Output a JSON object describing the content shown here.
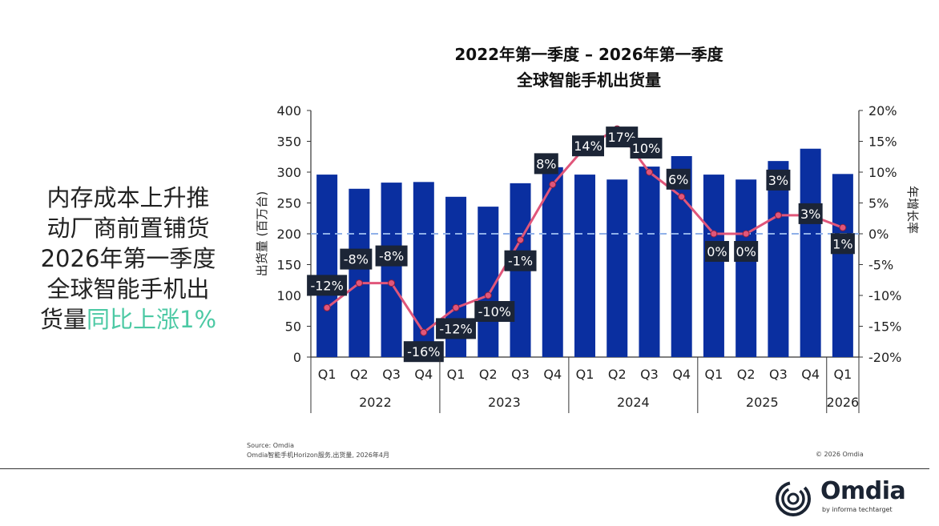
{
  "headline": {
    "lines": [
      "内存成本上升推",
      "动厂商前置铺货",
      "2026年第一季度",
      "全球智能手机出"
    ],
    "last_line_plain": "货量",
    "last_line_highlight": "同比上涨1%",
    "highlight_color": "#4cc9a4"
  },
  "chart_data": {
    "type": "bar+line",
    "title": [
      "2022年第一季度 – 2026年第一季度",
      "全球智能手机出货量"
    ],
    "ylabel": "出货量 (百万台)",
    "y2label": "年增长率",
    "ylim": [
      0,
      400
    ],
    "yticks": [
      "0",
      "50",
      "100",
      "150",
      "200",
      "250",
      "300",
      "350",
      "400"
    ],
    "y2lim": [
      -20,
      20
    ],
    "y2ticks": [
      "-20%",
      "-15%",
      "-10%",
      "-5%",
      "0%",
      "5%",
      "10%",
      "15%",
      "20%"
    ],
    "categories": [
      "Q1",
      "Q2",
      "Q3",
      "Q4",
      "Q1",
      "Q2",
      "Q3",
      "Q4",
      "Q1",
      "Q2",
      "Q3",
      "Q4",
      "Q1",
      "Q2",
      "Q3",
      "Q4",
      "Q1"
    ],
    "groups": [
      {
        "label": "2022",
        "count": 4
      },
      {
        "label": "2023",
        "count": 4
      },
      {
        "label": "2024",
        "count": 4
      },
      {
        "label": "2025",
        "count": 4
      },
      {
        "label": "2026",
        "count": 1
      }
    ],
    "series": [
      {
        "type": "bar",
        "axis": "left",
        "color": "#0a2fa0",
        "values": [
          296,
          273,
          283,
          284,
          260,
          244,
          282,
          308,
          296,
          288,
          309,
          326,
          296,
          288,
          318,
          338,
          297
        ]
      },
      {
        "type": "line",
        "axis": "right",
        "color": "#e0567a",
        "values": [
          -12,
          -8,
          -8,
          -16,
          -12,
          -10,
          -1,
          8,
          14,
          17,
          10,
          6,
          0,
          0,
          3,
          3,
          1
        ],
        "labels": [
          "-12%",
          "-8%",
          "-8%",
          "-16%",
          "-12%",
          "-10%",
          "-1%",
          "8%",
          "14%",
          "17%",
          "10%",
          "6%",
          "0%",
          "0%",
          "3%",
          "3%",
          "1%"
        ]
      }
    ],
    "reference_line": {
      "axis": "right",
      "value": 0,
      "style": "dashed"
    },
    "grid": false,
    "legend": "none"
  },
  "footer": {
    "source": "Source: Omdia",
    "note": "Omdia智能手机Horizon服务,出货量, 2026年4月",
    "copyright": "© 2026 Omdia"
  },
  "logo": {
    "name": "Omdia",
    "sub": "by informa techtarget"
  }
}
